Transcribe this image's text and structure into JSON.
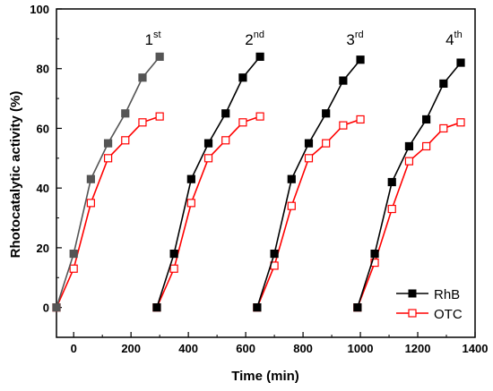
{
  "chart_data": {
    "type": "line",
    "xlabel": "Time (min)",
    "ylabel": "Rhotocatalytic activity (%)",
    "xlim": [
      -60,
      1400
    ],
    "ylim": [
      -10,
      100
    ],
    "x_ticks": [
      0,
      200,
      400,
      600,
      800,
      1000,
      1200,
      1400
    ],
    "y_ticks": [
      0,
      20,
      40,
      60,
      80,
      100
    ],
    "legend": {
      "placement": "bottom-right",
      "entries": [
        "RhB",
        "OTC"
      ]
    },
    "cycle_labels": [
      {
        "base": "1",
        "sup": "st",
        "x": 295,
        "y": 88
      },
      {
        "base": "2",
        "sup": "nd",
        "x": 650,
        "y": 88
      },
      {
        "base": "3",
        "sup": "rd",
        "x": 1000,
        "y": 88
      },
      {
        "base": "4",
        "sup": "th",
        "x": 1345,
        "y": 88
      }
    ],
    "series": [
      {
        "name": "RhB",
        "color": "#000000",
        "marker": "filled-square",
        "segments": [
          {
            "x": [
              -60,
              0,
              60,
              120,
              180,
              240,
              300
            ],
            "y": [
              0,
              18,
              43,
              55,
              65,
              77,
              84
            ],
            "color": "#555555"
          },
          {
            "x": [
              290,
              350,
              410,
              470,
              530,
              590,
              650
            ],
            "y": [
              0,
              18,
              43,
              55,
              65,
              77,
              84
            ]
          },
          {
            "x": [
              640,
              700,
              760,
              820,
              880,
              940,
              1000
            ],
            "y": [
              0,
              18,
              43,
              55,
              65,
              76,
              83
            ]
          },
          {
            "x": [
              990,
              1050,
              1110,
              1170,
              1230,
              1290,
              1350
            ],
            "y": [
              0,
              18,
              42,
              54,
              63,
              75,
              82
            ]
          }
        ]
      },
      {
        "name": "OTC",
        "color": "#ff0000",
        "marker": "open-square",
        "segments": [
          {
            "x": [
              -60,
              0,
              60,
              120,
              180,
              240,
              300
            ],
            "y": [
              0,
              13,
              35,
              50,
              56,
              62,
              64
            ]
          },
          {
            "x": [
              290,
              350,
              410,
              470,
              530,
              590,
              650
            ],
            "y": [
              0,
              13,
              35,
              50,
              56,
              62,
              64
            ]
          },
          {
            "x": [
              640,
              700,
              760,
              820,
              880,
              940,
              1000
            ],
            "y": [
              0,
              14,
              34,
              50,
              55,
              61,
              63
            ]
          },
          {
            "x": [
              990,
              1050,
              1110,
              1170,
              1230,
              1290,
              1350
            ],
            "y": [
              0,
              15,
              33,
              49,
              54,
              60,
              62
            ]
          }
        ]
      }
    ]
  }
}
